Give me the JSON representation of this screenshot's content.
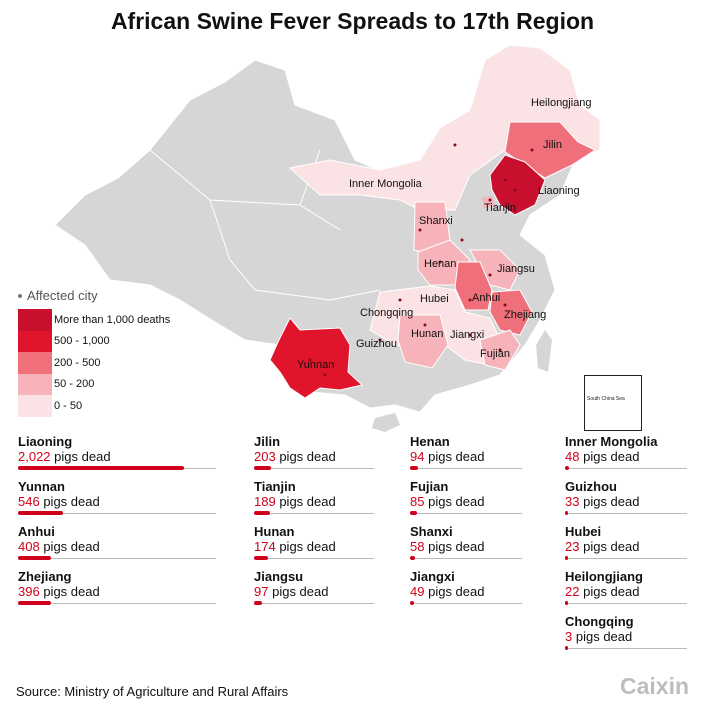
{
  "title": "African Swine Fever Spreads to 17th Region",
  "legend": {
    "title": "Affected city",
    "items": [
      {
        "label": "More than 1,000 deaths",
        "color": "#c8102e"
      },
      {
        "label": "500 - 1,000",
        "color": "#e0142a"
      },
      {
        "label": "200 - 500",
        "color": "#ef6f7b"
      },
      {
        "label": "50 - 200",
        "color": "#f6b3ba"
      },
      {
        "label": "0 - 50",
        "color": "#fbe3e5"
      }
    ]
  },
  "map_labels": {
    "heilongjiang": "Heilongjiang",
    "jilin": "Jilin",
    "liaoning": "Liaoning",
    "inner_mongolia": "Inner Mongolia",
    "tianjin": "Tianjin",
    "shanxi": "Shanxi",
    "henan": "Henan",
    "jiangsu": "Jiangsu",
    "anhui": "Anhui",
    "hubei": "Hubei",
    "zhejiang": "Zhejiang",
    "chongqing": "Chongqing",
    "jiangxi": "Jiangxi",
    "guizhou": "Guizhou",
    "hunan": "Hunan",
    "fujian": "Fujian",
    "yunnan": "Yunnan"
  },
  "inset_label": "South China Sea",
  "unit_suffix": "pigs dead",
  "max_deaths": 2022,
  "columns": [
    [
      {
        "name": "Liaoning",
        "value": "2,022",
        "deaths": 2022
      },
      {
        "name": "Yunnan",
        "value": "546",
        "deaths": 546
      },
      {
        "name": "Anhui",
        "value": "408",
        "deaths": 408
      },
      {
        "name": "Zhejiang",
        "value": "396",
        "deaths": 396
      }
    ],
    [
      {
        "name": "Jilin",
        "value": "203",
        "deaths": 203
      },
      {
        "name": "Tianjin",
        "value": "189",
        "deaths": 189
      },
      {
        "name": "Hunan",
        "value": "174",
        "deaths": 174
      },
      {
        "name": "Jiangsu",
        "value": "97",
        "deaths": 97
      }
    ],
    [
      {
        "name": "Henan",
        "value": "94",
        "deaths": 94
      },
      {
        "name": "Fujian",
        "value": "85",
        "deaths": 85
      },
      {
        "name": "Shanxi",
        "value": "58",
        "deaths": 58
      },
      {
        "name": "Jiangxi",
        "value": "49",
        "deaths": 49
      }
    ],
    [
      {
        "name": "Inner Mongolia",
        "value": "48",
        "deaths": 48
      },
      {
        "name": "Guizhou",
        "value": "33",
        "deaths": 33
      },
      {
        "name": "Hubei",
        "value": "23",
        "deaths": 23
      },
      {
        "name": "Heilongjiang",
        "value": "22",
        "deaths": 22
      },
      {
        "name": "Chongqing",
        "value": "3",
        "deaths": 3
      }
    ]
  ],
  "source": "Source: Ministry of Agriculture and Rural Affairs",
  "logo": "Caixin",
  "colors": {
    "accent": "#d0021b",
    "base_land": "#d6d6d6"
  }
}
